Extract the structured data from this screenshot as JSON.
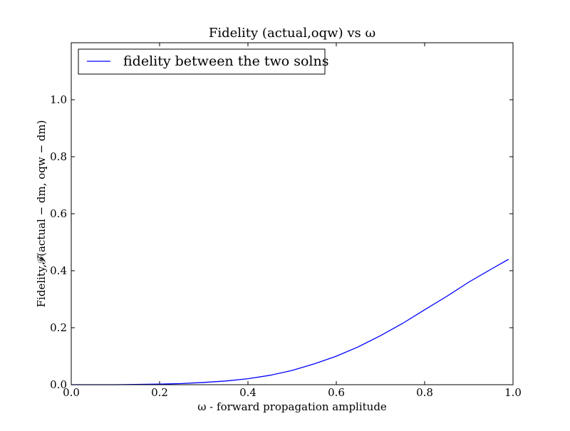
{
  "chart_data": {
    "type": "line",
    "title": "Fidelity (actual,oqw) vs ω",
    "xlabel": "ω - forward propagation amplitude",
    "ylabel": "Fidelity,𝓕(actual − dm, oqw − dm)",
    "xlim": [
      0.0,
      1.0
    ],
    "ylim": [
      0.0,
      1.2
    ],
    "x_ticks": [
      0.0,
      0.2,
      0.4,
      0.6,
      0.8,
      1.0
    ],
    "x_tick_labels": [
      "0.0",
      "0.2",
      "0.4",
      "0.6",
      "0.8",
      "1.0"
    ],
    "y_ticks": [
      0.0,
      0.2,
      0.4,
      0.6,
      0.8,
      1.0
    ],
    "y_tick_labels": [
      "0.0",
      "0.2",
      "0.4",
      "0.6",
      "0.8",
      "1.0"
    ],
    "grid": false,
    "legend_position": "top-left",
    "series": [
      {
        "name": "fidelity between the two solns",
        "color": "#0000ff",
        "x": [
          0.0,
          0.1,
          0.2,
          0.25,
          0.3,
          0.35,
          0.4,
          0.45,
          0.5,
          0.55,
          0.6,
          0.65,
          0.7,
          0.75,
          0.8,
          0.85,
          0.9,
          0.95,
          0.99
        ],
        "y": [
          0.0,
          0.0,
          0.002,
          0.004,
          0.008,
          0.013,
          0.021,
          0.033,
          0.05,
          0.073,
          0.1,
          0.133,
          0.172,
          0.215,
          0.263,
          0.31,
          0.36,
          0.405,
          0.44
        ]
      }
    ]
  }
}
